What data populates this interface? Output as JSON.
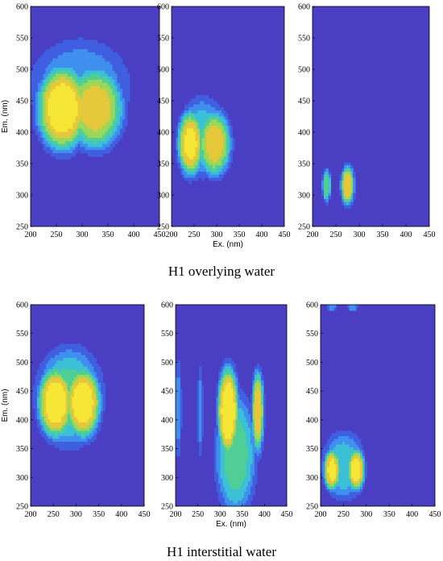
{
  "figure": {
    "captions": [
      "H1 overlying water",
      "H1 interstitial water"
    ],
    "colors": {
      "background": "#4a3fc2",
      "levels": [
        "#4a3fc2",
        "#3f5ee0",
        "#3f90ee",
        "#3cc0d8",
        "#4fcf96",
        "#9bd85a",
        "#e5c93a",
        "#f6e635"
      ],
      "contour_line": "#1a1a4a",
      "frame": "#000000"
    }
  },
  "chart_data": [
    {
      "type": "heatmap",
      "title": "",
      "group": "H1 overlying water",
      "panel": 1,
      "xlabel": "",
      "ylabel": "Em. (nm)",
      "xlim": [
        200,
        450
      ],
      "ylim": [
        250,
        600
      ],
      "xticks": [
        200,
        250,
        300,
        350,
        400,
        450
      ],
      "yticks": [
        250,
        300,
        350,
        400,
        450,
        500,
        550,
        600
      ],
      "peaks": [
        {
          "ex": 262,
          "em": 438,
          "intensity": 0.95,
          "sx": 38,
          "sy": 52
        },
        {
          "ex": 325,
          "em": 438,
          "intensity": 0.8,
          "sx": 42,
          "sy": 50
        },
        {
          "ex": 295,
          "em": 470,
          "intensity": 0.35,
          "sx": 75,
          "sy": 60
        }
      ]
    },
    {
      "type": "heatmap",
      "title": "",
      "group": "H1 overlying water",
      "panel": 2,
      "xlabel": "Ex. (nm)",
      "ylabel": "",
      "xlim": [
        200,
        450
      ],
      "ylim": [
        250,
        600
      ],
      "xticks": [
        200,
        250,
        300,
        350,
        400,
        450
      ],
      "yticks": [
        250,
        300,
        350,
        400,
        450,
        500,
        550,
        600
      ],
      "peaks": [
        {
          "ex": 242,
          "em": 382,
          "intensity": 0.9,
          "sx": 22,
          "sy": 40
        },
        {
          "ex": 295,
          "em": 382,
          "intensity": 0.8,
          "sx": 28,
          "sy": 40
        },
        {
          "ex": 268,
          "em": 392,
          "intensity": 0.45,
          "sx": 40,
          "sy": 48
        }
      ]
    },
    {
      "type": "heatmap",
      "title": "",
      "group": "H1 overlying water",
      "panel": 3,
      "xlabel": "",
      "ylabel": "",
      "xlim": [
        200,
        450
      ],
      "ylim": [
        250,
        600
      ],
      "xticks": [
        200,
        250,
        300,
        350,
        400,
        450
      ],
      "yticks": [
        250,
        300,
        350,
        400,
        450,
        500,
        550,
        600
      ],
      "peaks": [
        {
          "ex": 230,
          "em": 315,
          "intensity": 0.6,
          "sx": 7,
          "sy": 20
        },
        {
          "ex": 275,
          "em": 315,
          "intensity": 0.85,
          "sx": 11,
          "sy": 24
        }
      ]
    },
    {
      "type": "heatmap",
      "title": "",
      "group": "H1 interstitial water",
      "panel": 1,
      "xlabel": "",
      "ylabel": "Em. (nm)",
      "xlim": [
        200,
        450
      ],
      "ylim": [
        250,
        600
      ],
      "xticks": [
        200,
        250,
        300,
        350,
        400,
        450
      ],
      "yticks": [
        250,
        300,
        350,
        400,
        450,
        500,
        550,
        600
      ],
      "peaks": [
        {
          "ex": 255,
          "em": 430,
          "intensity": 0.95,
          "sx": 30,
          "sy": 48
        },
        {
          "ex": 315,
          "em": 430,
          "intensity": 0.95,
          "sx": 30,
          "sy": 48
        },
        {
          "ex": 285,
          "em": 440,
          "intensity": 0.55,
          "sx": 55,
          "sy": 65
        }
      ]
    },
    {
      "type": "heatmap",
      "title": "",
      "group": "H1 interstitial water",
      "panel": 2,
      "xlabel": "Ex. (nm)",
      "ylabel": "",
      "xlim": [
        200,
        450
      ],
      "ylim": [
        250,
        600
      ],
      "xticks": [
        200,
        250,
        300,
        350,
        400,
        450
      ],
      "yticks": [
        250,
        300,
        350,
        400,
        450,
        500,
        550,
        600
      ],
      "peaks": [
        {
          "ex": 318,
          "em": 415,
          "intensity": 1.0,
          "sx": 18,
          "sy": 60
        },
        {
          "ex": 385,
          "em": 415,
          "intensity": 0.85,
          "sx": 10,
          "sy": 55
        },
        {
          "ex": 335,
          "em": 340,
          "intensity": 0.55,
          "sx": 35,
          "sy": 80
        },
        {
          "ex": 205,
          "em": 420,
          "intensity": 0.3,
          "sx": 6,
          "sy": 70
        },
        {
          "ex": 255,
          "em": 415,
          "intensity": 0.3,
          "sx": 5,
          "sy": 60
        }
      ]
    },
    {
      "type": "heatmap",
      "title": "",
      "group": "H1 interstitial water",
      "panel": 3,
      "xlabel": "",
      "ylabel": "",
      "xlim": [
        200,
        450
      ],
      "ylim": [
        250,
        600
      ],
      "xticks": [
        200,
        250,
        300,
        350,
        400,
        450
      ],
      "yticks": [
        250,
        300,
        350,
        400,
        450,
        500,
        550,
        600
      ],
      "peaks": [
        {
          "ex": 225,
          "em": 313,
          "intensity": 0.9,
          "sx": 14,
          "sy": 28
        },
        {
          "ex": 278,
          "em": 313,
          "intensity": 0.95,
          "sx": 14,
          "sy": 28
        },
        {
          "ex": 250,
          "em": 320,
          "intensity": 0.45,
          "sx": 35,
          "sy": 45
        },
        {
          "ex": 225,
          "em": 597,
          "intensity": 0.35,
          "sx": 8,
          "sy": 6
        },
        {
          "ex": 270,
          "em": 597,
          "intensity": 0.35,
          "sx": 8,
          "sy": 6
        }
      ]
    }
  ]
}
